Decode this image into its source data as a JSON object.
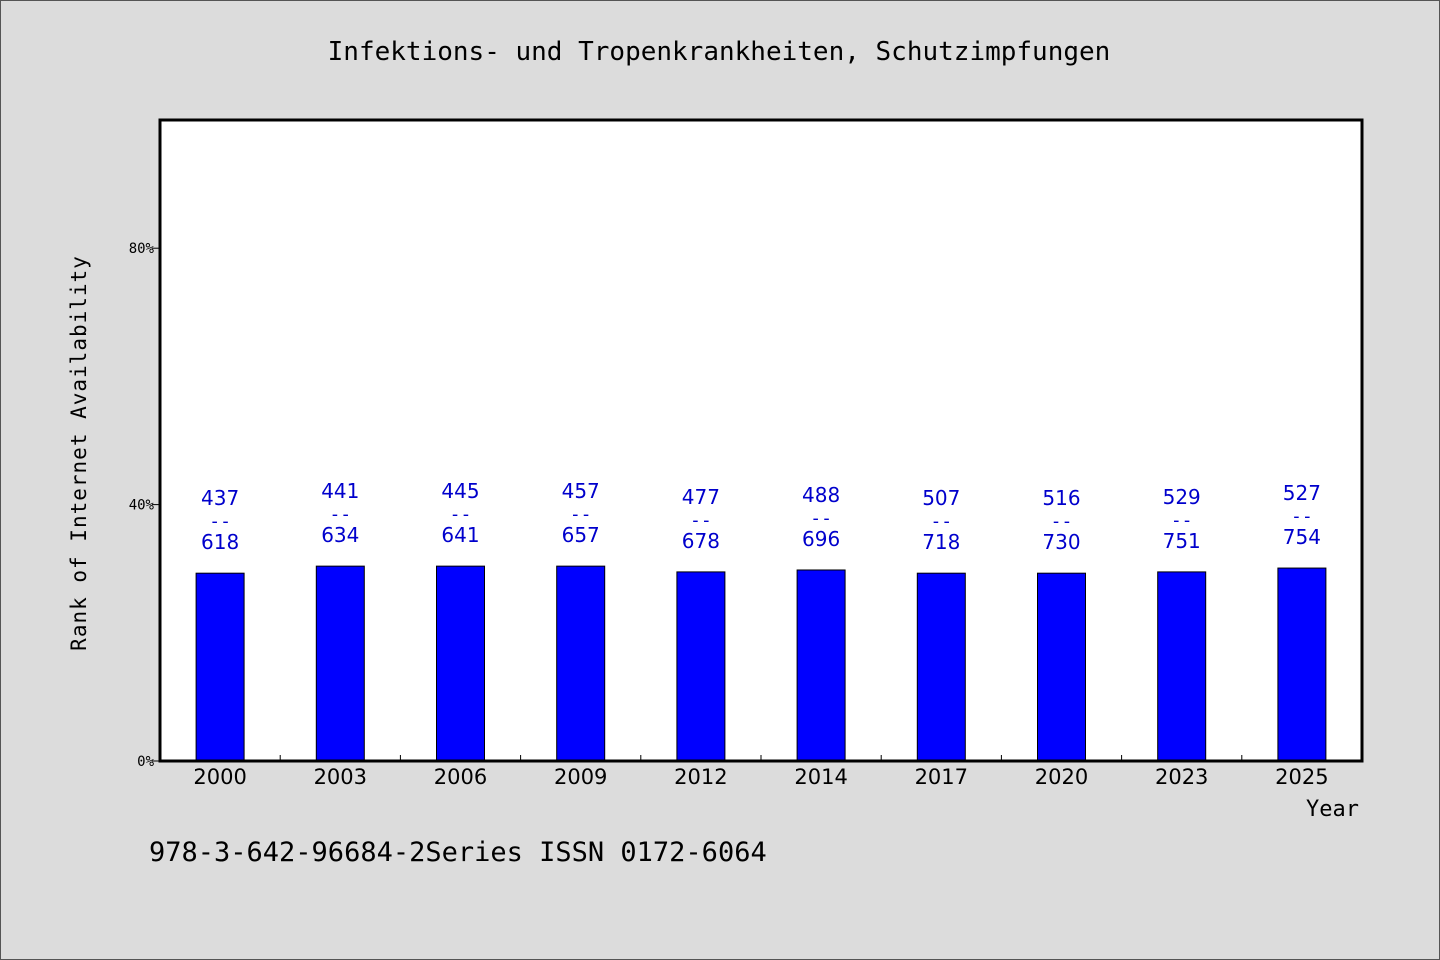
{
  "chart_data": {
    "type": "bar",
    "title": "Infektions- und Tropenkrankheiten, Schutzimpfungen",
    "xlabel": "Year",
    "ylabel": "Rank of Internet Availability",
    "ylim": [
      0,
      100
    ],
    "yticks": [
      0,
      40,
      80
    ],
    "ytick_labels": [
      "0%",
      "40%",
      "80%"
    ],
    "grid": false,
    "categories": [
      "2000",
      "2003",
      "2006",
      "2009",
      "2012",
      "2014",
      "2017",
      "2020",
      "2023",
      "2025"
    ],
    "values": [
      29.3,
      30.4,
      30.4,
      30.4,
      29.5,
      29.8,
      29.3,
      29.3,
      29.5,
      30.1
    ],
    "bar_labels": [
      {
        "top": "437",
        "sep": "--",
        "bottom": "618"
      },
      {
        "top": "441",
        "sep": "--",
        "bottom": "634"
      },
      {
        "top": "445",
        "sep": "--",
        "bottom": "641"
      },
      {
        "top": "457",
        "sep": "--",
        "bottom": "657"
      },
      {
        "top": "477",
        "sep": "--",
        "bottom": "678"
      },
      {
        "top": "488",
        "sep": "--",
        "bottom": "696"
      },
      {
        "top": "507",
        "sep": "--",
        "bottom": "718"
      },
      {
        "top": "516",
        "sep": "--",
        "bottom": "730"
      },
      {
        "top": "529",
        "sep": "--",
        "bottom": "751"
      },
      {
        "top": "527",
        "sep": "--",
        "bottom": "754"
      }
    ],
    "colors": {
      "bar": "#0000ff",
      "label": "#0000cc",
      "axis": "#000000",
      "background": "#dcdcdc",
      "plot_background": "#ffffff"
    }
  },
  "footer": "978-3-642-96684-2Series ISSN 0172-6064"
}
